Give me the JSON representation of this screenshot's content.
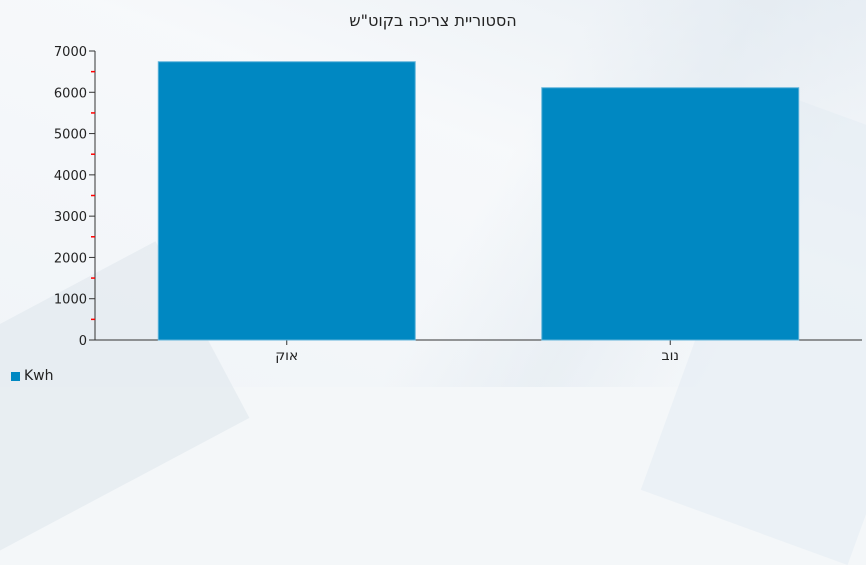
{
  "chart_data": {
    "type": "bar",
    "title": "הסטוריית צריכה בקוט\"ש",
    "categories": [
      "אוק",
      "נוב"
    ],
    "series": [
      {
        "name": "Kwh",
        "values": [
          6740,
          6110
        ],
        "color": "#0088c2"
      }
    ],
    "ylim": [
      0,
      7000
    ],
    "yticks": [
      0,
      1000,
      2000,
      3000,
      4000,
      5000,
      6000,
      7000
    ],
    "minor_tick_color": "#ff0000",
    "grid": false,
    "legend": "bottom-left",
    "xlabel": "",
    "ylabel": ""
  }
}
